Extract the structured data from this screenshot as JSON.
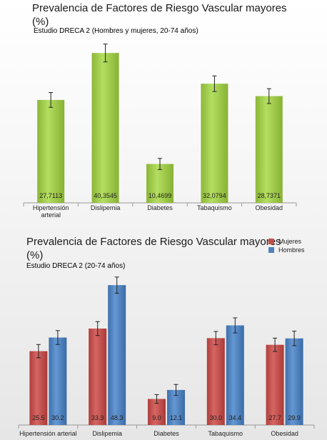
{
  "chart_data": [
    {
      "type": "bar",
      "title": "Prevalencia de Factores de Riesgo Vascular mayores\n(%)",
      "subtitle": "Estudio DRECA 2 (Hombres y mujeres, 20-74 años)",
      "categories": [
        "Hipertensión arterial",
        "Dislipemia",
        "Diabetes",
        "Tabaquismo",
        "Obesidad"
      ],
      "values": [
        27.7113,
        40.3545,
        10.4699,
        32.0794,
        28.7371
      ],
      "value_labels": [
        "27,7113",
        "40,3545",
        "10,4699",
        "32,0794",
        "28,7371"
      ],
      "error": [
        2.0,
        2.4,
        1.5,
        2.1,
        2.0
      ],
      "ylim": [
        0,
        45
      ],
      "grid": false,
      "colors": [
        "#9ec84a"
      ]
    },
    {
      "type": "bar",
      "title": "Prevalencia de Factores de Riesgo Vascular mayores\n(%)",
      "subtitle": "Estudio DRECA 2 (20-74 años)",
      "categories": [
        "Hipertensión arterial",
        "Dislipemia",
        "Diabetes",
        "Tabaquismo",
        "Obesidad"
      ],
      "series": [
        {
          "name": "Mujeres",
          "values": [
            25.5,
            33.3,
            9.0,
            30.0,
            27.7
          ],
          "value_labels": [
            "25.5",
            "33.3",
            "9.0",
            "30.0",
            "27.7"
          ],
          "error": [
            2.3,
            2.4,
            1.5,
            2.3,
            2.3
          ]
        },
        {
          "name": "Hombres",
          "values": [
            30.2,
            48.3,
            12.1,
            34.4,
            29.9
          ],
          "value_labels": [
            "30.2",
            "48.3",
            "12.1",
            "34.4",
            "29.9"
          ],
          "error": [
            2.4,
            2.8,
            1.9,
            2.6,
            2.5
          ]
        }
      ],
      "ylim": [
        0,
        55
      ],
      "legend_position": "top-right",
      "grid": false,
      "colors": [
        "#c0504d",
        "#4f81bd"
      ]
    }
  ]
}
